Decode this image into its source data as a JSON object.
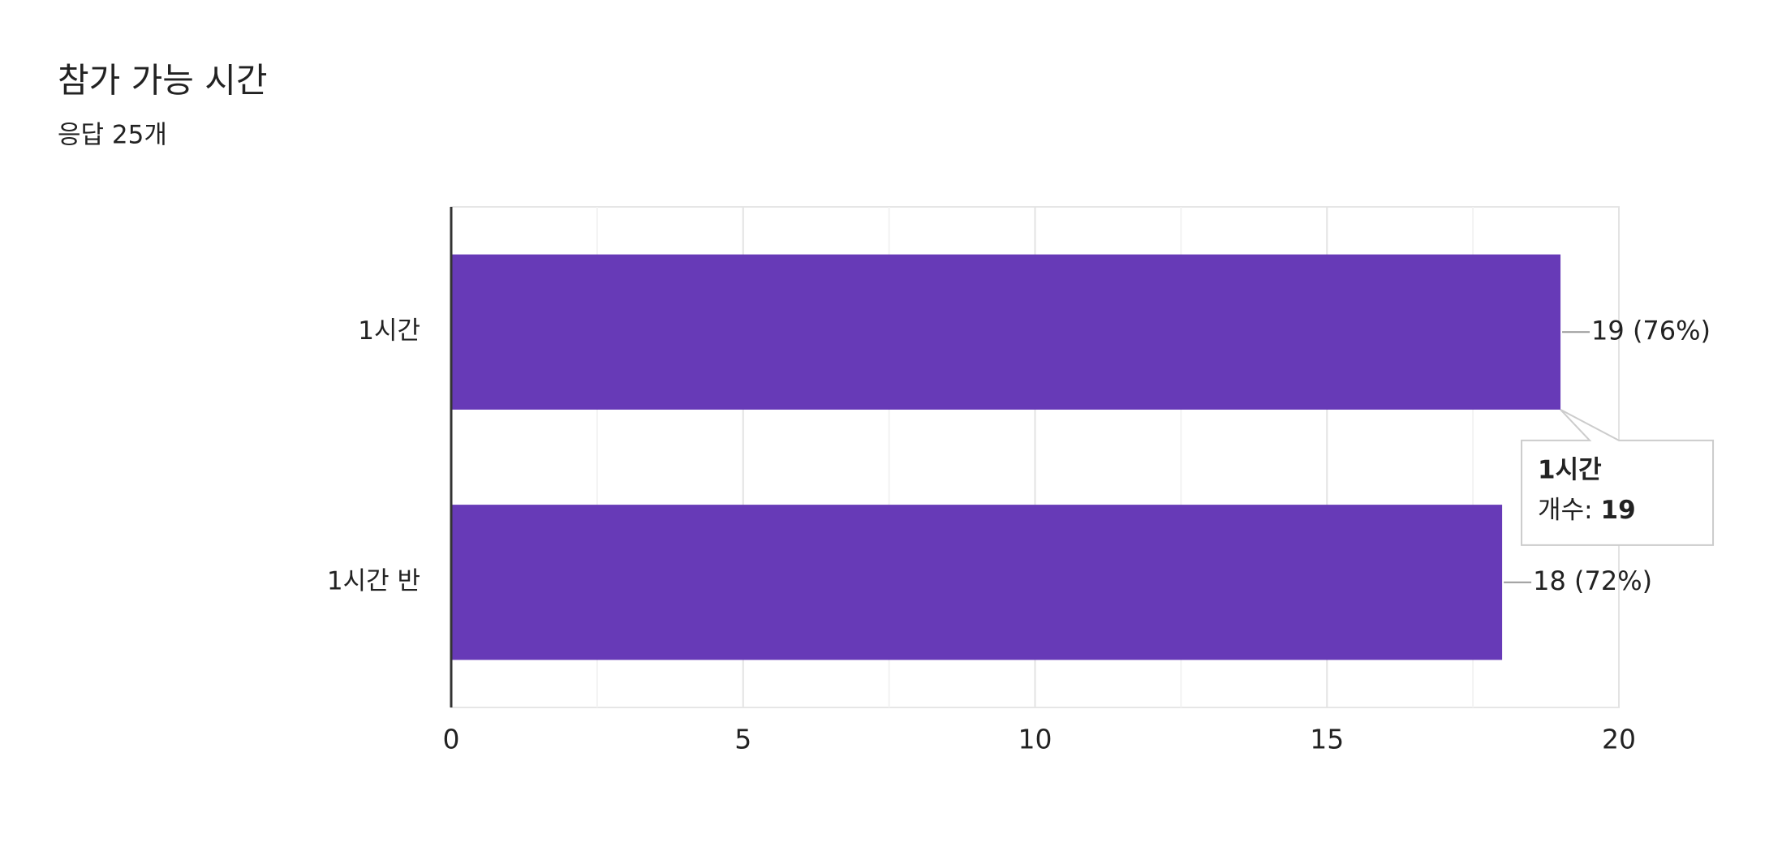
{
  "chart_data": {
    "type": "bar",
    "orientation": "horizontal",
    "title": "참가 가능 시간",
    "subtitle": "응답 25개",
    "categories": [
      "1시간",
      "1시간 반"
    ],
    "values": [
      19,
      18
    ],
    "value_labels": [
      "19 (76%)",
      "18 (72%)"
    ],
    "color": "#673ab7",
    "xlim": [
      0,
      20
    ],
    "xticks": [
      0,
      5,
      10,
      15,
      20
    ],
    "grid": true,
    "tooltip": {
      "label": "개수:"
    }
  }
}
